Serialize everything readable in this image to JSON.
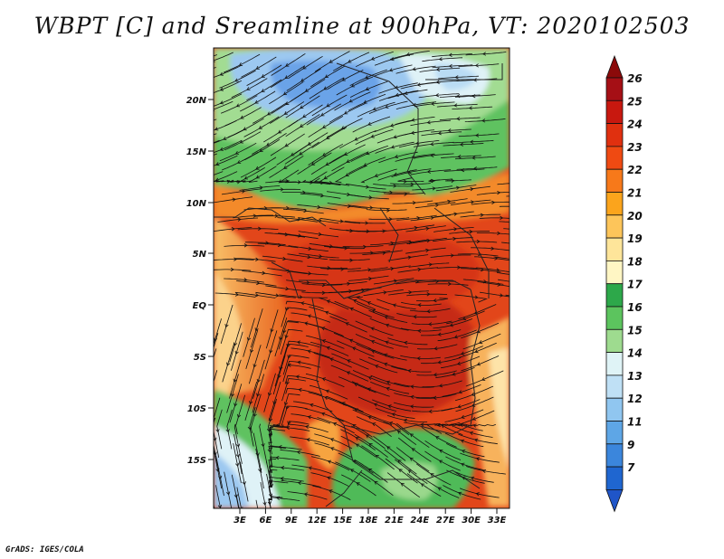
{
  "title": "WBPT [C] and Sreamline at 900hPa, VT: 2020102503",
  "footer": "GrADS: IGES/COLA",
  "map": {
    "lat_ticks": [
      "20N",
      "15N",
      "10N",
      "5N",
      "EQ",
      "5S",
      "10S",
      "15S"
    ],
    "lon_ticks": [
      "3E",
      "6E",
      "9E",
      "12E",
      "15E",
      "18E",
      "21E",
      "24E",
      "27E",
      "30E",
      "33E"
    ],
    "field": "wet-bulb potential temperature",
    "overlay": "streamlines"
  },
  "colorbar": {
    "labels": [
      "26",
      "25",
      "24",
      "23",
      "22",
      "21",
      "20",
      "19",
      "18",
      "17",
      "16",
      "15",
      "14",
      "13",
      "12",
      "11",
      "9",
      "7"
    ],
    "colors": [
      "#a50f15",
      "#c8180f",
      "#e0300f",
      "#ef4a12",
      "#f7791a",
      "#fba41c",
      "#fdc55a",
      "#fee59a",
      "#fff6c4",
      "#2da84a",
      "#5cc45e",
      "#9edb8f",
      "#dff3f6",
      "#bfe0f5",
      "#90c6f0",
      "#5ea6e6",
      "#3b86dc",
      "#1f66d0"
    ],
    "top_arrow_color": "#8b0a0a",
    "bottom_arrow_color": "#1f55c8"
  },
  "palette": {
    "deep_red": "#c8250f",
    "red": "#e0421a",
    "orange": "#f08a2c",
    "light_orange": "#f9c36a",
    "pale": "#fff3c6",
    "green": "#3fb04e",
    "light_green": "#8fd48a",
    "pale_blue": "#dff2f7",
    "light_blue": "#9cc8f0",
    "blue": "#6aa3e8"
  }
}
